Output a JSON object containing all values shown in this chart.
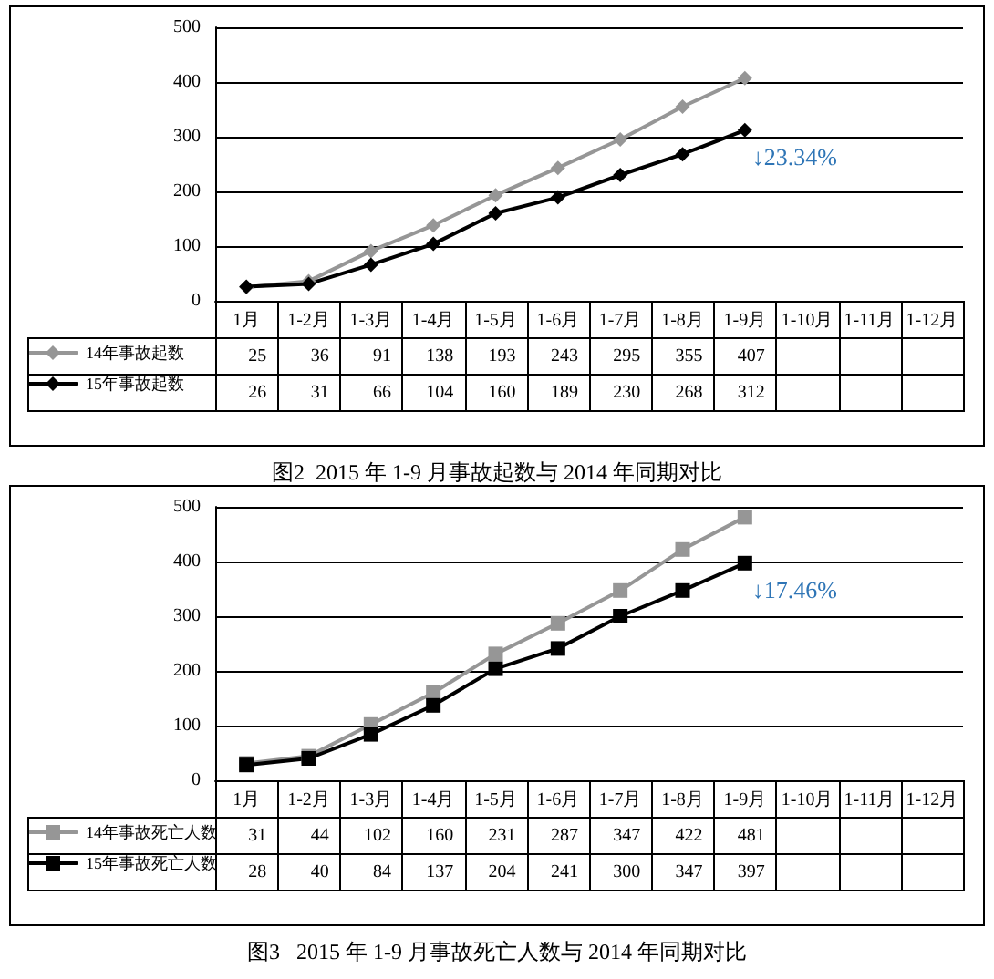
{
  "chart_data": [
    {
      "type": "line",
      "title": "图2  2015 年 1-9 月事故起数与 2014 年同期对比",
      "categories": [
        "1月",
        "1-2月",
        "1-3月",
        "1-4月",
        "1-5月",
        "1-6月",
        "1-7月",
        "1-8月",
        "1-9月",
        "1-10月",
        "1-11月",
        "1-12月"
      ],
      "series": [
        {
          "name": "14年事故起数",
          "color": "#969696",
          "values": [
            25,
            36,
            91,
            138,
            193,
            243,
            295,
            355,
            407,
            null,
            null,
            null
          ]
        },
        {
          "name": "15年事故起数",
          "color": "#000000",
          "values": [
            26,
            31,
            66,
            104,
            160,
            189,
            230,
            268,
            312,
            null,
            null,
            null
          ]
        }
      ],
      "ylim": [
        0,
        500
      ],
      "yticks": [
        0,
        100,
        200,
        300,
        400,
        500
      ],
      "grid": "y",
      "legend": "bottom left",
      "marker": "diamond",
      "data_labels": true,
      "annotations": [
        {
          "text": "↓23.34%",
          "x": "1-9月",
          "y": 312
        }
      ]
    },
    {
      "type": "line",
      "title": "图3   2015 年 1-9 月事故死亡人数与 2014 年同期对比",
      "categories": [
        "1月",
        "1-2月",
        "1-3月",
        "1-4月",
        "1-5月",
        "1-6月",
        "1-7月",
        "1-8月",
        "1-9月",
        "1-10月",
        "1-11月",
        "1-12月"
      ],
      "series": [
        {
          "name": "14年事故死亡人数",
          "color": "#969696",
          "values": [
            31,
            44,
            102,
            160,
            231,
            287,
            347,
            422,
            481,
            null,
            null,
            null
          ]
        },
        {
          "name": "15年事故死亡人数",
          "color": "#000000",
          "values": [
            28,
            40,
            84,
            137,
            204,
            241,
            300,
            347,
            397,
            null,
            null,
            null
          ]
        }
      ],
      "ylim": [
        0,
        500
      ],
      "yticks": [
        0,
        100,
        200,
        300,
        400,
        500
      ],
      "grid": "y",
      "legend": "bottom left",
      "marker": "square",
      "data_labels": true,
      "annotations": [
        {
          "text": "↓17.46%",
          "x": "1-9月",
          "y": 397
        }
      ]
    }
  ]
}
